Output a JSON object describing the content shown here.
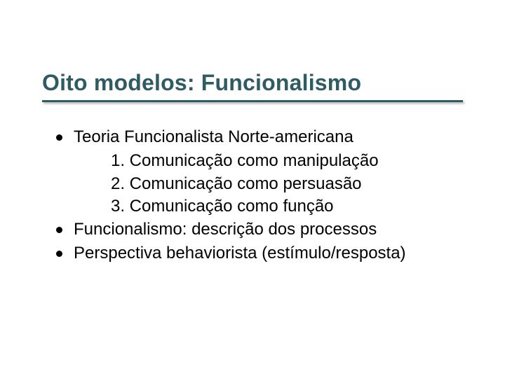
{
  "slide": {
    "title": "Oito modelos: Funcionalismo",
    "title_color": "#2f5b62",
    "title_fontsize": 32,
    "underline_color": "#2f5b62",
    "underline_width": 600,
    "underline_height": 3,
    "background_color": "#ffffff",
    "body_fontsize": 24,
    "body_color": "#000000",
    "bullet_dot_color": "#000000",
    "bullet_dot_size": 9,
    "bullets": [
      {
        "text": "Teoria Funcionalista Norte-americana",
        "subitems": [
          "1. Comunicação como manipulação",
          "2. Comunicação como persuasão",
          "3. Comunicação como função"
        ]
      },
      {
        "text": "Funcionalismo: descrição dos processos",
        "subitems": []
      },
      {
        "text": "Perspectiva behaviorista (estímulo/resposta)",
        "subitems": []
      }
    ]
  }
}
